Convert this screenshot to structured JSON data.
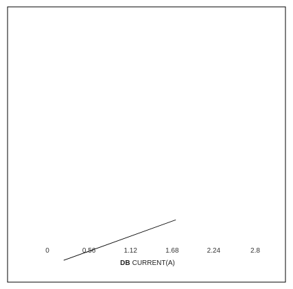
{
  "chart_data": {
    "type": "line",
    "xlabel_prefix": "DB",
    "xlabel": "CURRENT(A)",
    "x_ticks": [
      "0",
      "0.56",
      "1.12",
      "1.68",
      "2.24",
      "2.8"
    ],
    "x_tick_values": [
      0,
      0.56,
      1.12,
      1.68,
      2.24,
      2.8
    ],
    "xlim": [
      0,
      2.8
    ],
    "grid": false,
    "legend": "none",
    "series": [
      {
        "x": [
          0.22,
          1.73
        ],
        "y": [
          -0.15,
          0.52
        ],
        "color": "#000000"
      }
    ],
    "ylim": [
      0,
      6.0
    ]
  },
  "colors": {
    "frame": "#000000",
    "background": "#ffffff",
    "line": "#000000"
  }
}
